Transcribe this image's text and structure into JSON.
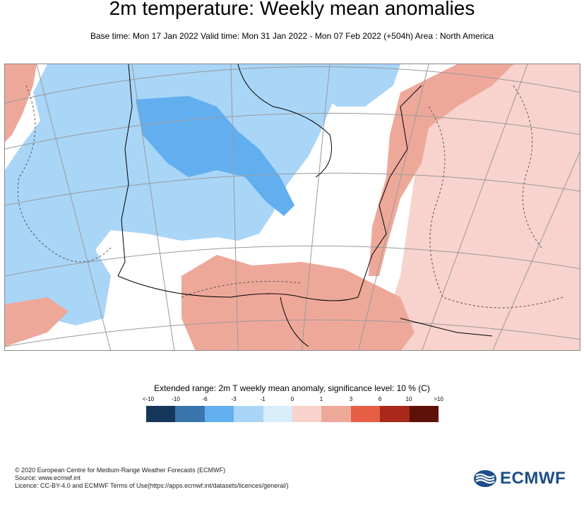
{
  "header": {
    "title": "2m temperature: Weekly mean anomalies",
    "subtitle": "Base time: Mon 17 Jan 2022 Valid time: Mon 31 Jan 2022 - Mon 07 Feb 2022 (+504h) Area : North America"
  },
  "map": {
    "region": "North America",
    "field": "2m temperature weekly mean anomaly"
  },
  "legend": {
    "title": "Extended range: 2m T weekly mean anomaly, significance level: 10 % (C)",
    "ticks": [
      "<-10",
      "-10",
      "-6",
      "-3",
      "-1",
      "0",
      "1",
      "3",
      "6",
      "10",
      ">10"
    ],
    "colors": [
      "#16375a",
      "#3a75ab",
      "#62aff0",
      "#a9d5f7",
      "#d9edfb",
      "#f8d2cc",
      "#eea89a",
      "#e55e45",
      "#a8291b",
      "#5e1108"
    ]
  },
  "footer": {
    "copyright": "© 2020 European Centre for Medium-Range Weather Forecasts (ECMWF)",
    "source": "Source: www.ecmwf.int",
    "licence": "Licence: CC-BY-4.0 and ECMWF Terms of Use(https://apps.ecmwf.int/datasets/licences/general/)"
  },
  "logo": {
    "text": "ECMWF"
  }
}
